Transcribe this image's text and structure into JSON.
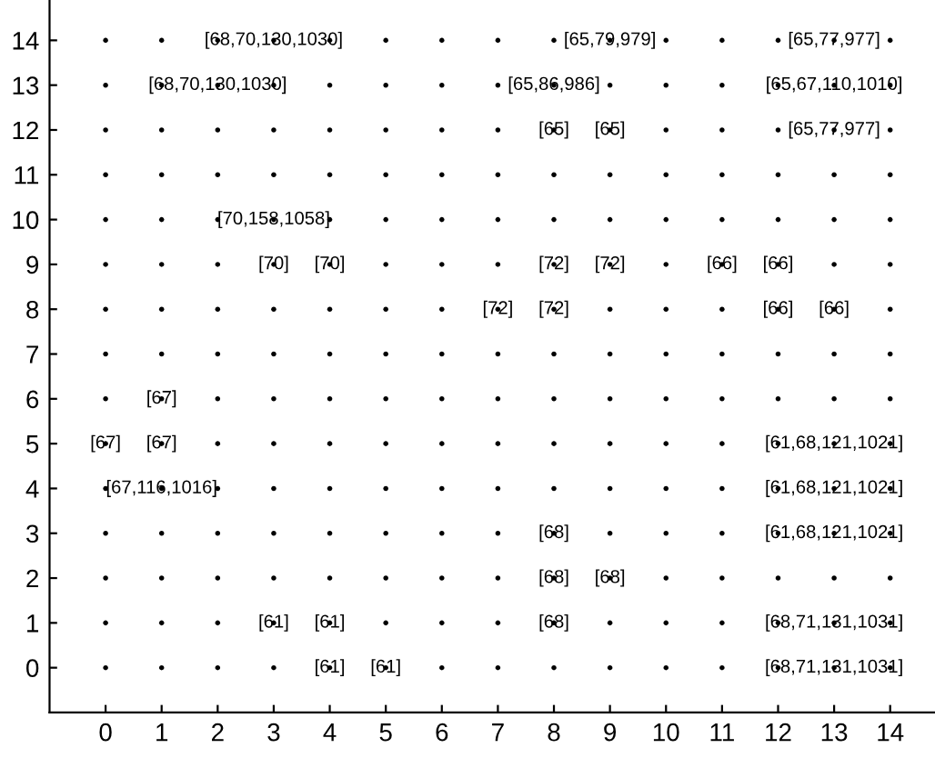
{
  "chart_data": {
    "type": "scatter",
    "series": [
      {
        "color": "#000000",
        "x": [
          0,
          1,
          2,
          3,
          4,
          5,
          6,
          7,
          8,
          9,
          10,
          11,
          12,
          13,
          14,
          0,
          1,
          2,
          3,
          4,
          5,
          6,
          7,
          8,
          9,
          10,
          11,
          12,
          13,
          14,
          0,
          1,
          2,
          3,
          4,
          5,
          6,
          7,
          8,
          9,
          10,
          11,
          12,
          13,
          14,
          0,
          1,
          2,
          3,
          4,
          5,
          6,
          7,
          8,
          9,
          10,
          11,
          12,
          13,
          14,
          0,
          1,
          2,
          3,
          4,
          5,
          6,
          7,
          8,
          9,
          10,
          11,
          12,
          13,
          14,
          0,
          1,
          2,
          3,
          4,
          5,
          6,
          7,
          8,
          9,
          10,
          11,
          12,
          13,
          14,
          0,
          1,
          2,
          3,
          4,
          5,
          6,
          7,
          8,
          9,
          10,
          11,
          12,
          13,
          14,
          0,
          1,
          2,
          3,
          4,
          5,
          6,
          7,
          8,
          9,
          10,
          11,
          12,
          13,
          14,
          0,
          1,
          2,
          3,
          4,
          5,
          6,
          7,
          8,
          9,
          10,
          11,
          12,
          13,
          14,
          0,
          1,
          2,
          3,
          4,
          5,
          6,
          7,
          8,
          9,
          10,
          11,
          12,
          13,
          14,
          0,
          1,
          2,
          3,
          4,
          5,
          6,
          7,
          8,
          9,
          10,
          11,
          12,
          13,
          14,
          0,
          1,
          2,
          3,
          4,
          5,
          6,
          7,
          8,
          9,
          10,
          11,
          12,
          13,
          14,
          0,
          1,
          2,
          3,
          4,
          5,
          6,
          7,
          8,
          9,
          10,
          11,
          12,
          13,
          14,
          0,
          1,
          2,
          3,
          4,
          5,
          6,
          7,
          8,
          9,
          10,
          11,
          12,
          13,
          14,
          0,
          1,
          2,
          3,
          4,
          5,
          6,
          7,
          8,
          9,
          10,
          11,
          12,
          13,
          14
        ],
        "values": [
          0,
          0,
          0,
          0,
          0,
          0,
          0,
          0,
          0,
          0,
          0,
          0,
          0,
          0,
          0,
          1,
          1,
          1,
          1,
          1,
          1,
          1,
          1,
          1,
          1,
          1,
          1,
          1,
          1,
          1,
          2,
          2,
          2,
          2,
          2,
          2,
          2,
          2,
          2,
          2,
          2,
          2,
          2,
          2,
          2,
          3,
          3,
          3,
          3,
          3,
          3,
          3,
          3,
          3,
          3,
          3,
          3,
          3,
          3,
          3,
          4,
          4,
          4,
          4,
          4,
          4,
          4,
          4,
          4,
          4,
          4,
          4,
          4,
          4,
          4,
          5,
          5,
          5,
          5,
          5,
          5,
          5,
          5,
          5,
          5,
          5,
          5,
          5,
          5,
          5,
          6,
          6,
          6,
          6,
          6,
          6,
          6,
          6,
          6,
          6,
          6,
          6,
          6,
          6,
          6,
          7,
          7,
          7,
          7,
          7,
          7,
          7,
          7,
          7,
          7,
          7,
          7,
          7,
          7,
          7,
          8,
          8,
          8,
          8,
          8,
          8,
          8,
          8,
          8,
          8,
          8,
          8,
          8,
          8,
          8,
          9,
          9,
          9,
          9,
          9,
          9,
          9,
          9,
          9,
          9,
          9,
          9,
          9,
          9,
          9,
          10,
          10,
          10,
          10,
          10,
          10,
          10,
          10,
          10,
          10,
          10,
          10,
          10,
          10,
          10,
          11,
          11,
          11,
          11,
          11,
          11,
          11,
          11,
          11,
          11,
          11,
          11,
          11,
          11,
          11,
          12,
          12,
          12,
          12,
          12,
          12,
          12,
          12,
          12,
          12,
          12,
          12,
          12,
          12,
          12,
          13,
          13,
          13,
          13,
          13,
          13,
          13,
          13,
          13,
          13,
          13,
          13,
          13,
          13,
          13,
          14,
          14,
          14,
          14,
          14,
          14,
          14,
          14,
          14,
          14,
          14,
          14,
          14,
          14,
          14
        ]
      }
    ],
    "marker": "circle",
    "xlim": [
      -1,
      14.8
    ],
    "ylim": [
      -1,
      14.9
    ],
    "xticks": [
      0,
      1,
      2,
      3,
      4,
      5,
      6,
      7,
      8,
      9,
      10,
      11,
      12,
      13,
      14
    ],
    "yticks": [
      0,
      1,
      2,
      3,
      4,
      5,
      6,
      7,
      8,
      9,
      10,
      11,
      12,
      13,
      14
    ],
    "grid": false,
    "annotations": [
      {
        "text": "[68,70,130,1030]",
        "x": 3,
        "y": 14
      },
      {
        "text": "[68,70,130,1030]",
        "x": 2,
        "y": 13
      },
      {
        "text": "[70,158,1058]",
        "x": 3,
        "y": 10
      },
      {
        "text": "[70]",
        "x": 3,
        "y": 9
      },
      {
        "text": "[70]",
        "x": 4,
        "y": 9
      },
      {
        "text": "[67]",
        "x": 1,
        "y": 6
      },
      {
        "text": "[67]",
        "x": 0,
        "y": 5
      },
      {
        "text": "[67]",
        "x": 1,
        "y": 5
      },
      {
        "text": "[67,116,1016]",
        "x": 1,
        "y": 4
      },
      {
        "text": "[61]",
        "x": 4,
        "y": 1
      },
      {
        "text": "[61]",
        "x": 3,
        "y": 1
      },
      {
        "text": "[61]",
        "x": 5,
        "y": 0
      },
      {
        "text": "[61]",
        "x": 4,
        "y": 0
      },
      {
        "text": "[65,79,979]",
        "x": 9,
        "y": 14
      },
      {
        "text": "[65,86,986]",
        "x": 8,
        "y": 13
      },
      {
        "text": "[65]",
        "x": 8,
        "y": 12
      },
      {
        "text": "[65]",
        "x": 9,
        "y": 12
      },
      {
        "text": "[65,77,977]",
        "x": 13,
        "y": 14
      },
      {
        "text": "[65,67,110,1010]",
        "x": 13,
        "y": 13
      },
      {
        "text": "[65,77,977]",
        "x": 13,
        "y": 12
      },
      {
        "text": "[72]",
        "x": 8,
        "y": 9
      },
      {
        "text": "[72]",
        "x": 9,
        "y": 9
      },
      {
        "text": "[72]",
        "x": 7,
        "y": 8
      },
      {
        "text": "[72]",
        "x": 8,
        "y": 8
      },
      {
        "text": "[66]",
        "x": 12,
        "y": 9
      },
      {
        "text": "[66]",
        "x": 11,
        "y": 9
      },
      {
        "text": "[66]",
        "x": 13,
        "y": 8
      },
      {
        "text": "[66]",
        "x": 12,
        "y": 8
      },
      {
        "text": "[61,68,121,1021]",
        "x": 13,
        "y": 5
      },
      {
        "text": "[61,68,121,1021]",
        "x": 13,
        "y": 4
      },
      {
        "text": "[61,68,121,1021]",
        "x": 13,
        "y": 3
      },
      {
        "text": "[68,71,131,1031]",
        "x": 13,
        "y": 1
      },
      {
        "text": "[68,71,131,1031]",
        "x": 13,
        "y": 0
      },
      {
        "text": "[68]",
        "x": 8,
        "y": 3
      },
      {
        "text": "[68]",
        "x": 8,
        "y": 2
      },
      {
        "text": "[68]",
        "x": 9,
        "y": 2
      },
      {
        "text": "[68]",
        "x": 8,
        "y": 1
      }
    ]
  }
}
